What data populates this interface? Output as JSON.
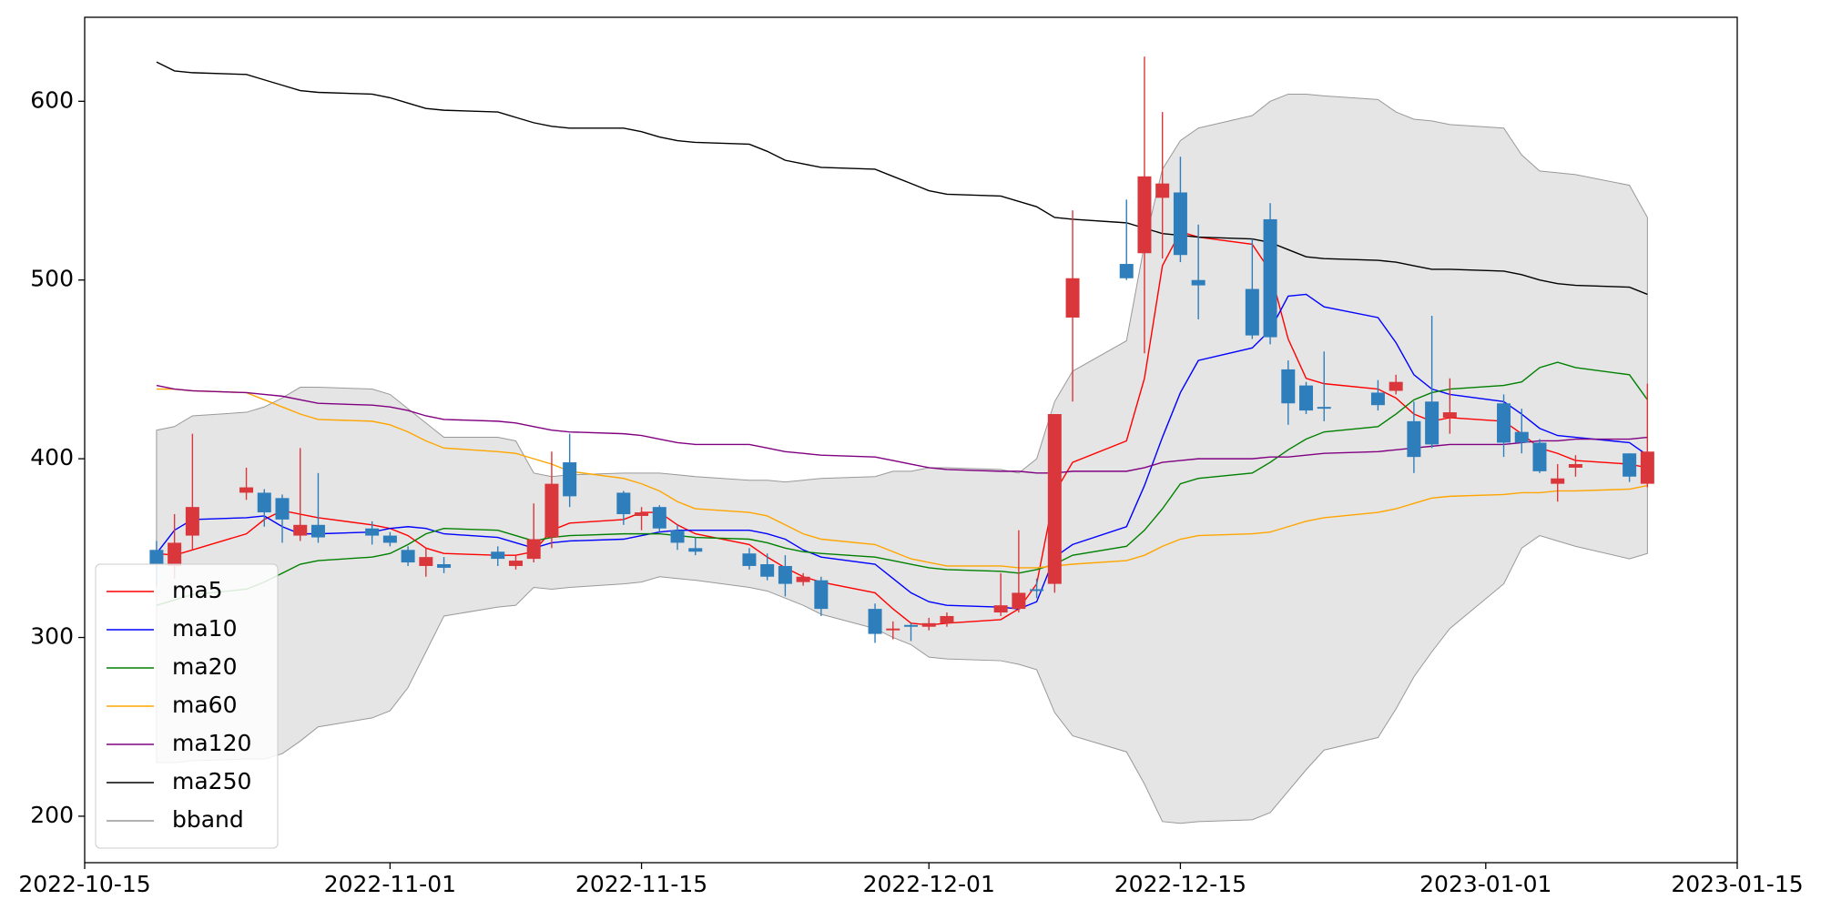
{
  "chart_data": {
    "type": "candlestick",
    "x": [
      "2022-10-19",
      "2022-10-20",
      "2022-10-21",
      "2022-10-24",
      "2022-10-25",
      "2022-10-26",
      "2022-10-27",
      "2022-10-28",
      "2022-10-31",
      "2022-11-01",
      "2022-11-02",
      "2022-11-03",
      "2022-11-04",
      "2022-11-07",
      "2022-11-08",
      "2022-11-09",
      "2022-11-10",
      "2022-11-11",
      "2022-11-14",
      "2022-11-15",
      "2022-11-16",
      "2022-11-17",
      "2022-11-18",
      "2022-11-21",
      "2022-11-22",
      "2022-11-23",
      "2022-11-24",
      "2022-11-25",
      "2022-11-28",
      "2022-11-29",
      "2022-11-30",
      "2022-12-01",
      "2022-12-02",
      "2022-12-05",
      "2022-12-06",
      "2022-12-07",
      "2022-12-08",
      "2022-12-09",
      "2022-12-12",
      "2022-12-13",
      "2022-12-14",
      "2022-12-15",
      "2022-12-16",
      "2022-12-19",
      "2022-12-20",
      "2022-12-21",
      "2022-12-22",
      "2022-12-23",
      "2022-12-26",
      "2022-12-27",
      "2022-12-28",
      "2022-12-29",
      "2022-12-30",
      "2023-01-02",
      "2023-01-03",
      "2023-01-04",
      "2023-01-05",
      "2023-01-06",
      "2023-01-09",
      "2023-01-10"
    ],
    "open": [
      349,
      340,
      357,
      381,
      381,
      378,
      357,
      363,
      361,
      357,
      349,
      340,
      341,
      348,
      340,
      344,
      356,
      398,
      381,
      368,
      373,
      360,
      350,
      347,
      341,
      340,
      331,
      332,
      316,
      304,
      307,
      306,
      308,
      314,
      316,
      327,
      330,
      479,
      509,
      515,
      546,
      549,
      500,
      495,
      534,
      450,
      441,
      429,
      437,
      438,
      421,
      432,
      423,
      431,
      415,
      409,
      386,
      395,
      403,
      386
    ],
    "high": [
      354,
      369,
      414,
      395,
      383,
      380,
      406,
      392,
      365,
      359,
      351,
      350,
      345,
      351,
      346,
      375,
      404,
      414,
      382,
      373,
      374,
      363,
      356,
      350,
      347,
      346,
      336,
      334,
      319,
      309,
      308,
      311,
      314,
      336,
      360,
      333,
      425,
      539,
      545,
      625,
      594,
      569,
      531,
      523,
      543,
      455,
      443,
      460,
      444,
      447,
      432,
      480,
      445,
      436,
      428,
      411,
      397,
      402,
      403,
      442
    ],
    "low": [
      329,
      333,
      349,
      377,
      362,
      353,
      354,
      353,
      352,
      351,
      340,
      334,
      336,
      340,
      338,
      342,
      350,
      373,
      363,
      360,
      359,
      349,
      346,
      338,
      332,
      323,
      329,
      312,
      297,
      299,
      298,
      304,
      306,
      312,
      314,
      322,
      325,
      432,
      500,
      459,
      512,
      510,
      478,
      467,
      464,
      419,
      425,
      421,
      427,
      436,
      392,
      406,
      414,
      401,
      403,
      392,
      376,
      390,
      387,
      384
    ],
    "close": [
      341,
      353,
      373,
      384,
      370,
      366,
      363,
      356,
      357,
      353,
      342,
      345,
      339,
      344,
      343,
      355,
      386,
      379,
      369,
      370,
      361,
      353,
      348,
      340,
      334,
      330,
      334,
      316,
      302,
      305,
      306,
      308,
      312,
      318,
      325,
      326,
      425,
      501,
      501,
      558,
      554,
      514,
      497,
      469,
      468,
      431,
      427,
      428,
      430,
      443,
      401,
      408,
      426,
      409,
      409,
      393,
      389,
      397,
      390,
      404
    ],
    "up_color": "#d9373b",
    "down_color": "#2f7ebc",
    "series": [
      {
        "name": "ma5",
        "color": "#ff0000",
        "values": [
          347,
          346,
          349,
          358,
          366,
          371,
          369,
          367,
          363,
          361,
          357,
          350,
          347,
          346,
          346,
          348,
          360,
          364,
          366,
          370,
          370,
          363,
          358,
          352,
          345,
          339,
          334,
          331,
          325,
          316,
          308,
          307,
          308,
          310,
          316,
          330,
          381,
          398,
          410,
          445,
          508,
          527,
          524,
          520,
          505,
          467,
          445,
          442,
          439,
          434,
          425,
          421,
          423,
          421,
          414,
          406,
          403,
          399,
          397,
          395
        ]
      },
      {
        "name": "ma10",
        "color": "#0000ff",
        "values": [
          347,
          360,
          366,
          367,
          368,
          362,
          358,
          358,
          359,
          361,
          362,
          361,
          358,
          356,
          353,
          350,
          353,
          354,
          355,
          357,
          359,
          360,
          360,
          360,
          358,
          355,
          349,
          345,
          341,
          333,
          325,
          320,
          318,
          317,
          316,
          320,
          345,
          352,
          362,
          385,
          412,
          437,
          455,
          462,
          472,
          491,
          492,
          485,
          479,
          465,
          447,
          439,
          436,
          432,
          425,
          417,
          413,
          412,
          409,
          402
        ]
      },
      {
        "name": "ma20",
        "color": "#008000",
        "values": [
          318,
          321,
          324,
          327,
          331,
          336,
          341,
          343,
          345,
          347,
          352,
          358,
          361,
          360,
          357,
          354,
          356,
          357,
          358,
          358,
          358,
          357,
          356,
          355,
          353,
          350,
          348,
          347,
          345,
          343,
          341,
          339,
          338,
          337,
          336,
          338,
          341,
          346,
          351,
          360,
          372,
          386,
          389,
          392,
          398,
          405,
          411,
          415,
          418,
          425,
          433,
          437,
          439,
          441,
          443,
          451,
          454,
          451,
          447,
          433
        ]
      },
      {
        "name": "ma60",
        "color": "#ffa500",
        "values": [
          439,
          439,
          438,
          437,
          433,
          429,
          425,
          422,
          421,
          419,
          415,
          410,
          406,
          404,
          403,
          400,
          397,
          393,
          389,
          386,
          382,
          376,
          372,
          370,
          368,
          363,
          358,
          355,
          352,
          348,
          344,
          342,
          340,
          340,
          339,
          339,
          340,
          341,
          343,
          346,
          351,
          355,
          357,
          358,
          359,
          362,
          365,
          367,
          370,
          372,
          375,
          378,
          379,
          380,
          381,
          381,
          382,
          382,
          383,
          385
        ]
      },
      {
        "name": "ma120",
        "color": "#800080",
        "values": [
          441,
          439,
          438,
          437,
          436,
          435,
          433,
          431,
          430,
          429,
          427,
          424,
          422,
          421,
          420,
          418,
          416,
          415,
          414,
          413,
          411,
          409,
          408,
          408,
          406,
          404,
          403,
          402,
          401,
          399,
          397,
          395,
          394,
          393,
          393,
          392,
          392,
          393,
          393,
          395,
          398,
          399,
          400,
          400,
          401,
          401,
          402,
          403,
          404,
          405,
          406,
          407,
          408,
          408,
          409,
          410,
          410,
          411,
          411,
          412
        ]
      },
      {
        "name": "ma250",
        "color": "#000000",
        "values": [
          622,
          617,
          616,
          615,
          612,
          609,
          606,
          605,
          604,
          602,
          599,
          596,
          595,
          594,
          591,
          588,
          586,
          585,
          585,
          583,
          580,
          578,
          577,
          576,
          572,
          567,
          565,
          563,
          562,
          558,
          554,
          550,
          548,
          547,
          544,
          541,
          535,
          534,
          532,
          529,
          526,
          525,
          524,
          523,
          521,
          517,
          513,
          512,
          511,
          510,
          508,
          506,
          506,
          505,
          503,
          500,
          498,
          497,
          496,
          492
        ]
      }
    ],
    "band": {
      "name": "bband",
      "color": "#999999",
      "fill": "#e5e5e5",
      "upper": [
        416,
        418,
        424,
        426,
        429,
        434,
        440,
        440,
        439,
        436,
        428,
        420,
        412,
        412,
        410,
        392,
        390,
        391,
        392,
        392,
        392,
        391,
        390,
        388,
        388,
        387,
        388,
        389,
        390,
        393,
        393,
        395,
        395,
        394,
        392,
        400,
        432,
        449,
        466,
        520,
        562,
        578,
        585,
        592,
        600,
        604,
        604,
        603,
        601,
        594,
        590,
        589,
        587,
        585,
        570,
        561,
        560,
        559,
        553,
        535
      ],
      "lower": [
        230,
        230,
        231,
        232,
        232,
        235,
        242,
        250,
        255,
        259,
        272,
        292,
        312,
        317,
        318,
        328,
        327,
        328,
        330,
        331,
        334,
        333,
        332,
        328,
        326,
        322,
        318,
        313,
        305,
        300,
        296,
        289,
        288,
        287,
        285,
        282,
        258,
        245,
        236,
        218,
        197,
        196,
        197,
        198,
        202,
        214,
        226,
        237,
        244,
        260,
        278,
        292,
        305,
        330,
        350,
        357,
        354,
        351,
        344,
        347
      ]
    },
    "xlim": [
      "2022-10-15",
      "2023-01-15"
    ],
    "xticks": [
      "2022-10-15",
      "2022-11-01",
      "2022-11-15",
      "2022-12-01",
      "2022-12-15",
      "2023-01-01",
      "2023-01-15"
    ],
    "ylim": [
      174,
      647
    ],
    "yticks": [
      200,
      300,
      400,
      500,
      600
    ],
    "legend": "lower left"
  }
}
